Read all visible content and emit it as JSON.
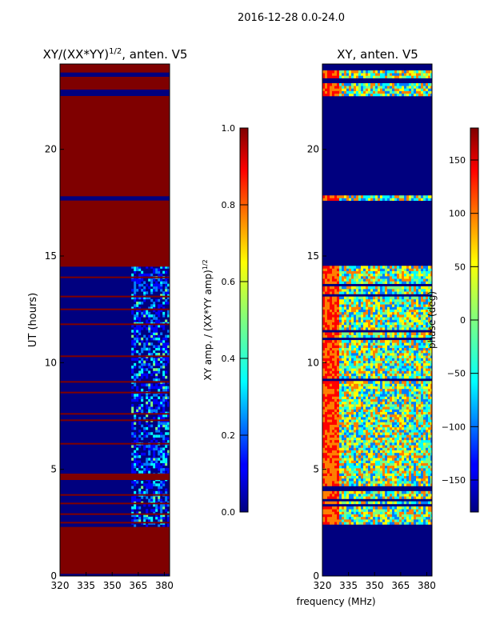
{
  "suptitle": "2016-12-28 0.0-24.0",
  "colors": {
    "dark_red": "#7f0000",
    "red": "#ff0000",
    "orange": "#ff7f00",
    "yellow": "#ffff00",
    "green": "#7fff7f",
    "cyan": "#00ffff",
    "sky": "#007fff",
    "blue": "#0000ff",
    "dark_blue": "#00007f"
  },
  "chart_data": [
    {
      "type": "heatmap",
      "title_main": "XY/(XX*YY)",
      "title_sup": "1/2",
      "title_tail": ", anten. V5",
      "xlabel": "",
      "ylabel": "UT (hours)",
      "xlim": [
        320,
        383
      ],
      "ylim": [
        0,
        24
      ],
      "xticks": [
        "320",
        "335",
        "350",
        "365",
        "380"
      ],
      "yticks": [
        "0",
        "5",
        "10",
        "15",
        "20"
      ],
      "mostly_high_bands": [
        [
          0.1,
          2.3
        ],
        [
          4.5,
          4.8
        ],
        [
          14.5,
          17.6
        ],
        [
          17.8,
          22.5
        ],
        [
          22.8,
          23.4
        ],
        [
          23.6,
          24.0
        ]
      ],
      "sparse_high_rows": [
        2.5,
        2.9,
        3.4,
        3.8,
        6.2,
        7.3,
        7.6,
        8.6,
        9.1,
        10.3,
        11.8,
        12.5,
        13.1,
        14.0
      ],
      "active_channel_range": [
        361,
        382
      ],
      "colorbar": {
        "label_main": "XY amp. / (XX*YY amp)",
        "label_sup": "1/2",
        "range": [
          0.0,
          1.0
        ],
        "ticks": [
          "0.0",
          "0.2",
          "0.4",
          "0.6",
          "0.8",
          "1.0"
        ]
      }
    },
    {
      "type": "heatmap",
      "title": "XY, anten. V5",
      "xlabel": "frequency (MHz)",
      "ylabel": "",
      "xlim": [
        320,
        383
      ],
      "ylim": [
        0,
        24
      ],
      "xticks": [
        "320",
        "335",
        "350",
        "365",
        "380"
      ],
      "yticks": [
        "0",
        "5",
        "10",
        "15",
        "20"
      ],
      "phase_active_bands": [
        [
          2.3,
          14.5
        ],
        [
          17.6,
          17.8
        ],
        [
          22.5,
          23.6
        ]
      ],
      "colorbar": {
        "label": "phase (deg)",
        "range": [
          -180,
          180
        ],
        "ticks": [
          "−150",
          "−100",
          "−50",
          "0",
          "50",
          "100",
          "150"
        ]
      }
    }
  ]
}
